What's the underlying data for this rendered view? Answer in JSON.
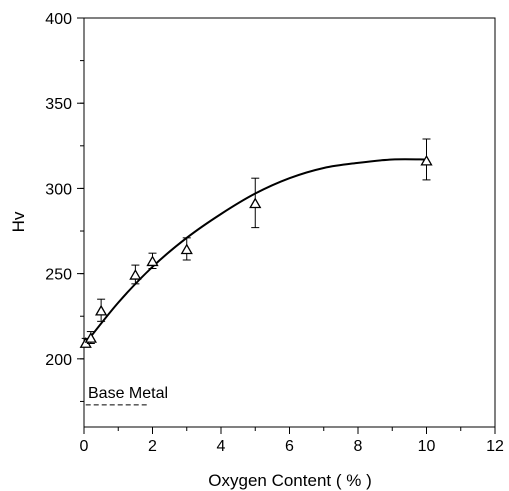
{
  "chart_data": {
    "type": "scatter",
    "title": "",
    "xlabel": "Oxygen Content ( % )",
    "ylabel": "Hv",
    "xlim": [
      0,
      12
    ],
    "ylim": [
      160,
      400
    ],
    "x_ticks": [
      0,
      2,
      4,
      6,
      8,
      10,
      12
    ],
    "y_ticks": [
      200,
      250,
      300,
      350,
      400
    ],
    "grid": false,
    "series": [
      {
        "marker": "open-triangle",
        "points": [
          {
            "x": 0.05,
            "y": 209,
            "err_low": 207,
            "err_high": 212
          },
          {
            "x": 0.2,
            "y": 212,
            "err_low": 209,
            "err_high": 216
          },
          {
            "x": 0.5,
            "y": 228,
            "err_low": 222,
            "err_high": 235
          },
          {
            "x": 1.5,
            "y": 249,
            "err_low": 244,
            "err_high": 255
          },
          {
            "x": 2.0,
            "y": 257,
            "err_low": 253,
            "err_high": 262
          },
          {
            "x": 3.0,
            "y": 264,
            "err_low": 258,
            "err_high": 271
          },
          {
            "x": 5.0,
            "y": 291,
            "err_low": 277,
            "err_high": 306
          },
          {
            "x": 10.0,
            "y": 316,
            "err_low": 305,
            "err_high": 329
          }
        ]
      }
    ],
    "fit_curve": {
      "style": "solid",
      "points": [
        [
          0,
          208
        ],
        [
          1,
          233
        ],
        [
          2,
          254
        ],
        [
          3,
          271
        ],
        [
          4,
          285
        ],
        [
          5,
          297
        ],
        [
          6,
          306
        ],
        [
          7,
          312
        ],
        [
          8,
          315
        ],
        [
          9,
          317
        ],
        [
          10,
          317
        ]
      ]
    },
    "reference_line": {
      "label": "Base Metal",
      "style": "dashed",
      "y": 173,
      "x_range": [
        0.05,
        1.9
      ]
    }
  }
}
